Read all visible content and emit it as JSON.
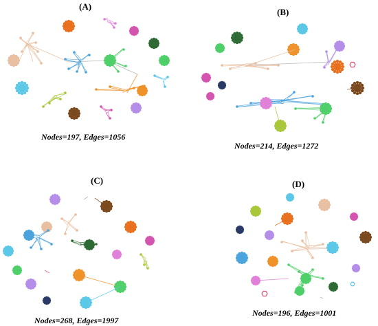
{
  "panels": [
    {
      "id": "A",
      "label": "(A)",
      "stats": "Nodes=197, Edges=1056"
    },
    {
      "id": "B",
      "label": "(B)",
      "stats": "Nodes=214, Edges=1272"
    },
    {
      "id": "C",
      "label": "(C)",
      "stats": "Nodes=268, Edges=1997"
    },
    {
      "id": "D",
      "label": "(D)",
      "stats": "Nodes=196, Edges=1001"
    }
  ],
  "colors": {
    "tan": "#e8bfa0",
    "blue": "#4aa3dd",
    "green": "#4fcf6a",
    "orange": "#f0922a",
    "dark_orange": "#e8701e",
    "pink": "#e080d8",
    "magenta": "#d455b0",
    "cyan": "#5cc8e8",
    "lime": "#a8c83a",
    "brown": "#7a4a1e",
    "dark_green": "#2e6a34",
    "purple": "#b48ee8",
    "navy": "#2a3a66",
    "red": "#e05070",
    "gray": "#b0b0b0"
  }
}
